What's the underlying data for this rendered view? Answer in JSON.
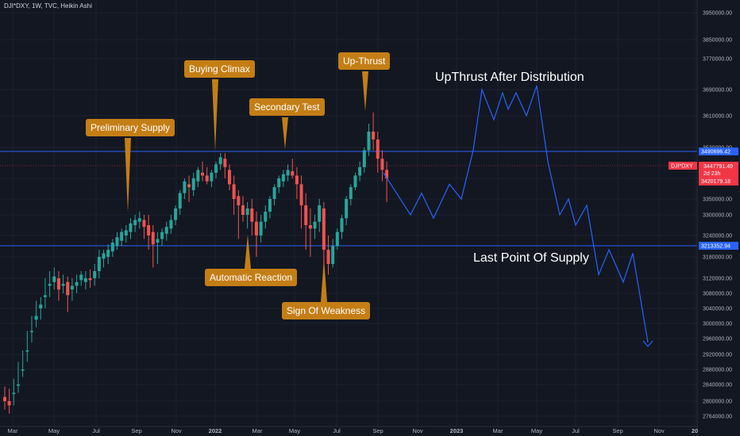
{
  "header": {
    "symbol_line": "DJI*DXY, 1W, TVC, Heikin Ashi"
  },
  "colors": {
    "up": "#26a69a",
    "down": "#ef5350",
    "annotation": "#c47e16",
    "projection": "#2962ff",
    "hline": "#2962ff",
    "red_line": "#f23645",
    "background": "#131722"
  },
  "chart_data": {
    "type": "candlestick",
    "title": "DJI*DXY, 1W, TVC, Heikin Ashi",
    "x_ticks": [
      "Mar",
      "May",
      "Jul",
      "Sep",
      "Nov",
      "2022",
      "Mar",
      "May",
      "Jul",
      "Sep",
      "Nov",
      "2023",
      "Mar",
      "May",
      "Jul",
      "Sep",
      "Nov",
      "20"
    ],
    "y_ticks": [
      2764000,
      2800000,
      2840000,
      2880000,
      2920000,
      2960000,
      3000000,
      3040000,
      3080000,
      3120000,
      3180000,
      3240000,
      3300000,
      3350000,
      3420000,
      3530000,
      3610000,
      3690000,
      3770000,
      3850000,
      3950000
    ],
    "y_tick_labels": [
      "2764000.00",
      "2800000.00",
      "2840000.00",
      "2880000.00",
      "2920000.00",
      "2960000.00",
      "3000000.00",
      "3040000.00",
      "3080000.00",
      "3120000.00",
      "3180000.00",
      "3240000.00",
      "3300000.00",
      "3350000.00",
      "3420000.00",
      "3530000.00",
      "3610000.00",
      "3690000.00",
      "3770000.00",
      "3850000.00",
      "3950000.00"
    ],
    "price_labels": {
      "upper_line": "3490696.42",
      "current_symbol": "DJI*DXY",
      "current_price": "3447791.49",
      "countdown": "2d 23h",
      "second_price": "3420179.18",
      "lower_line": "3213352.94"
    },
    "candles": [
      [
        2810000,
        2835000,
        2780000,
        2800000
      ],
      [
        2800000,
        2830000,
        2770000,
        2790000
      ],
      [
        2820000,
        2855000,
        2790000,
        2820000
      ],
      [
        2840000,
        2900000,
        2820000,
        2840000
      ],
      [
        2880000,
        2930000,
        2860000,
        2880000
      ],
      [
        2930000,
        2980000,
        2900000,
        2930000
      ],
      [
        2980000,
        3020000,
        2950000,
        2980000
      ],
      [
        3010000,
        3060000,
        2990000,
        3020000
      ],
      [
        3040000,
        3070000,
        3010000,
        3050000
      ],
      [
        3070000,
        3120000,
        3040000,
        3075000
      ],
      [
        3100000,
        3140000,
        3070000,
        3105000
      ],
      [
        3110000,
        3150000,
        3090000,
        3125000
      ],
      [
        3120000,
        3140000,
        3060000,
        3090000
      ],
      [
        3100000,
        3130000,
        3080000,
        3105000
      ],
      [
        3110000,
        3125000,
        3030000,
        3075000
      ],
      [
        3090000,
        3120000,
        3060000,
        3100000
      ],
      [
        3100000,
        3130000,
        3080000,
        3110000
      ],
      [
        3115000,
        3140000,
        3100000,
        3130000
      ],
      [
        3110000,
        3140000,
        3090000,
        3120000
      ],
      [
        3120000,
        3145000,
        3095000,
        3115000
      ],
      [
        3120000,
        3160000,
        3100000,
        3140000
      ],
      [
        3140000,
        3200000,
        3120000,
        3180000
      ],
      [
        3175000,
        3200000,
        3150000,
        3190000
      ],
      [
        3180000,
        3215000,
        3160000,
        3200000
      ],
      [
        3195000,
        3230000,
        3180000,
        3220000
      ],
      [
        3210000,
        3250000,
        3200000,
        3235000
      ],
      [
        3225000,
        3260000,
        3210000,
        3250000
      ],
      [
        3240000,
        3270000,
        3220000,
        3255000
      ],
      [
        3250000,
        3290000,
        3230000,
        3275000
      ],
      [
        3270000,
        3300000,
        3250000,
        3285000
      ],
      [
        3280000,
        3310000,
        3260000,
        3290000
      ],
      [
        3285000,
        3300000,
        3230000,
        3265000
      ],
      [
        3270000,
        3300000,
        3200000,
        3240000
      ],
      [
        3250000,
        3270000,
        3150000,
        3215000
      ],
      [
        3220000,
        3250000,
        3160000,
        3230000
      ],
      [
        3230000,
        3260000,
        3210000,
        3250000
      ],
      [
        3245000,
        3280000,
        3225000,
        3265000
      ],
      [
        3260000,
        3300000,
        3245000,
        3285000
      ],
      [
        3285000,
        3330000,
        3270000,
        3320000
      ],
      [
        3320000,
        3380000,
        3300000,
        3370000
      ],
      [
        3370000,
        3420000,
        3350000,
        3410000
      ],
      [
        3400000,
        3430000,
        3340000,
        3390000
      ],
      [
        3380000,
        3440000,
        3360000,
        3420000
      ],
      [
        3410000,
        3460000,
        3390000,
        3450000
      ],
      [
        3440000,
        3480000,
        3410000,
        3430000
      ],
      [
        3430000,
        3460000,
        3400000,
        3410000
      ],
      [
        3410000,
        3450000,
        3390000,
        3440000
      ],
      [
        3440000,
        3480000,
        3420000,
        3470000
      ],
      [
        3470000,
        3510000,
        3450000,
        3495000
      ],
      [
        3490000,
        3510000,
        3420000,
        3460000
      ],
      [
        3450000,
        3470000,
        3380000,
        3400000
      ],
      [
        3400000,
        3430000,
        3300000,
        3350000
      ],
      [
        3360000,
        3380000,
        3230000,
        3330000
      ],
      [
        3330000,
        3360000,
        3280000,
        3300000
      ],
      [
        3300000,
        3340000,
        3260000,
        3320000
      ],
      [
        3320000,
        3350000,
        3240000,
        3280000
      ],
      [
        3280000,
        3310000,
        3180000,
        3240000
      ],
      [
        3240000,
        3300000,
        3220000,
        3280000
      ],
      [
        3280000,
        3330000,
        3260000,
        3310000
      ],
      [
        3310000,
        3360000,
        3290000,
        3350000
      ],
      [
        3350000,
        3400000,
        3330000,
        3390000
      ],
      [
        3390000,
        3430000,
        3370000,
        3420000
      ],
      [
        3410000,
        3450000,
        3390000,
        3435000
      ],
      [
        3430000,
        3470000,
        3410000,
        3450000
      ],
      [
        3445000,
        3490000,
        3420000,
        3430000
      ],
      [
        3430000,
        3460000,
        3350000,
        3400000
      ],
      [
        3400000,
        3430000,
        3260000,
        3330000
      ],
      [
        3330000,
        3370000,
        3200000,
        3270000
      ],
      [
        3270000,
        3320000,
        3180000,
        3260000
      ],
      [
        3260000,
        3300000,
        3230000,
        3280000
      ],
      [
        3280000,
        3350000,
        3250000,
        3330000
      ],
      [
        3320000,
        3340000,
        3150000,
        3200000
      ],
      [
        3200000,
        3240000,
        3130000,
        3160000
      ],
      [
        3160000,
        3230000,
        3150000,
        3210000
      ],
      [
        3210000,
        3260000,
        3200000,
        3250000
      ],
      [
        3250000,
        3300000,
        3230000,
        3290000
      ],
      [
        3290000,
        3360000,
        3270000,
        3350000
      ],
      [
        3350000,
        3400000,
        3330000,
        3390000
      ],
      [
        3390000,
        3440000,
        3380000,
        3430000
      ],
      [
        3430000,
        3480000,
        3410000,
        3460000
      ],
      [
        3460000,
        3530000,
        3440000,
        3520000
      ],
      [
        3520000,
        3590000,
        3500000,
        3570000
      ],
      [
        3570000,
        3620000,
        3520000,
        3550000
      ],
      [
        3550000,
        3570000,
        3440000,
        3490000
      ],
      [
        3490000,
        3520000,
        3410000,
        3450000
      ],
      [
        3450000,
        3480000,
        3340000,
        3420000
      ]
    ],
    "projection_path": [
      [
        "2022-09",
        3440000
      ],
      [
        "2022-10",
        3300000
      ],
      [
        "2022-10b",
        3370000
      ],
      [
        "2022-11",
        3290000
      ],
      [
        "2022-12",
        3400000
      ],
      [
        "2022-12b",
        3350000
      ],
      [
        "2023-01",
        3520000
      ],
      [
        "2023-02",
        3690000
      ],
      [
        "2023-03",
        3600000
      ],
      [
        "2023-03b",
        3680000
      ],
      [
        "2023-04",
        3630000
      ],
      [
        "2023-04b",
        3680000
      ],
      [
        "2023-05",
        3610000
      ],
      [
        "2023-05b",
        3700000
      ],
      [
        "2023-06",
        3480000
      ],
      [
        "2023-07",
        3300000
      ],
      [
        "2023-07b",
        3350000
      ],
      [
        "2023-08",
        3270000
      ],
      [
        "2023-08b",
        3330000
      ],
      [
        "2023-09",
        3130000
      ],
      [
        "2023-09b",
        3200000
      ],
      [
        "2023-10",
        3110000
      ],
      [
        "2023-10b",
        3190000
      ],
      [
        "2023-11",
        2950000
      ]
    ],
    "horizontal_lines": [
      3490696.42,
      3213352.94
    ],
    "annotations": [
      "Preliminary Supply",
      "Buying Climax",
      "Secondary Test",
      "Up-Thrust",
      "Automatic Reaction",
      "Sign Of Weakness"
    ],
    "projection_labels": [
      "UpThrust After Distribution",
      "Last Point Of Supply"
    ]
  },
  "annotations": {
    "preliminary_supply": "Preliminary Supply",
    "buying_climax": "Buying Climax",
    "secondary_test": "Secondary Test",
    "up_thrust": "Up-Thrust",
    "automatic_reaction": "Automatic Reaction",
    "sign_of_weakness": "Sign Of Weakness",
    "upthrust_after_distribution": "UpThrust After Distribution",
    "last_point_of_supply": "Last Point Of Supply"
  }
}
